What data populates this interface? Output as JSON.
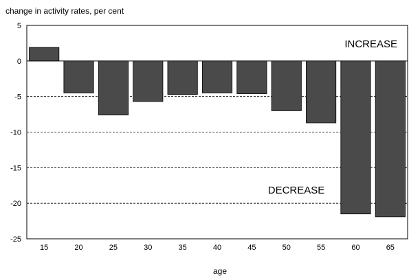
{
  "chart_data": {
    "type": "bar",
    "title": "",
    "ylabel": "change in activity rates, per cent",
    "xlabel": "age",
    "categories": [
      "15",
      "20",
      "25",
      "30",
      "35",
      "40",
      "45",
      "50",
      "55",
      "60",
      "65"
    ],
    "values": [
      1.9,
      -4.5,
      -7.6,
      -5.7,
      -4.7,
      -4.5,
      -4.6,
      -7.0,
      -8.7,
      -21.5,
      -21.9
    ],
    "ylim": [
      -25,
      5
    ],
    "yticks": [
      5,
      0,
      -5,
      -10,
      -15,
      -20,
      -25
    ],
    "grid": "dashed horizontal at y ticks",
    "annotations": {
      "increase": "INCREASE",
      "decrease": "DECREASE"
    },
    "bar_color": "#4a4a4a"
  }
}
